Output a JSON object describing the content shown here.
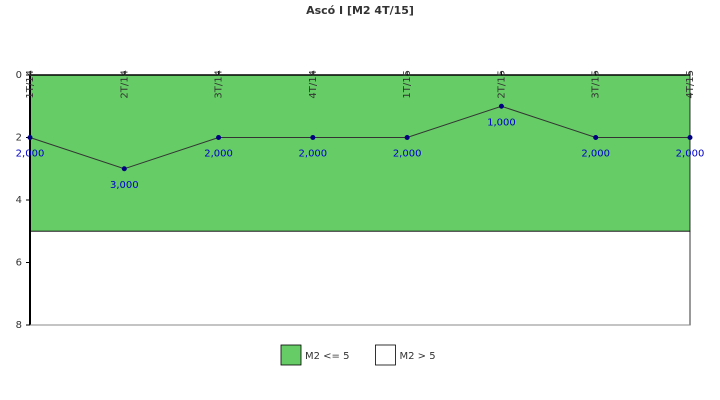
{
  "chart_data": {
    "type": "line",
    "title": "Ascó I [M2 4T/15]",
    "categories": [
      "1T/14",
      "2T/14",
      "3T/14",
      "4T/14",
      "1T/15",
      "2T/15",
      "3T/15",
      "4T/15"
    ],
    "series": [
      {
        "name": "M2",
        "color": "#333333",
        "marker_color": "#000080",
        "label_color": "#0000cc",
        "values": [
          2,
          3,
          2,
          2,
          2,
          1,
          2,
          2
        ],
        "value_labels": [
          "2,000",
          "3,000",
          "2,000",
          "2,000",
          "2,000",
          "1,000",
          "2,000",
          "2,000"
        ]
      }
    ],
    "bands": [
      {
        "name": "M2 <= 5",
        "color": "#66cc66",
        "from": 0,
        "to": 5
      },
      {
        "name": "M2 > 5",
        "color": "#ffffff",
        "from": 5,
        "to": 8
      }
    ],
    "ylim": [
      0,
      8
    ],
    "yticks": [
      0,
      2,
      4,
      6,
      8
    ],
    "y_inverted": true
  }
}
